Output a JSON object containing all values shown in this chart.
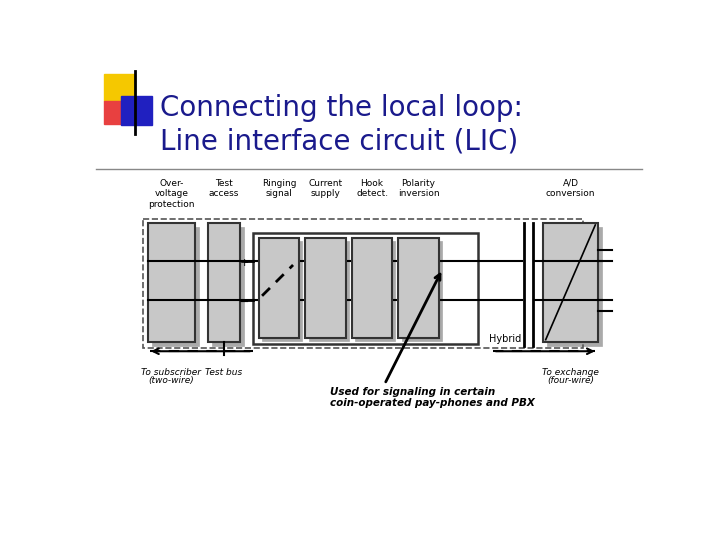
{
  "title_line1": "Connecting the local loop:",
  "title_line2": "Line interface circuit (LIC)",
  "title_color": "#1a1a8c",
  "title_fontsize": 20,
  "bg_color": "#ffffff",
  "box_fill": "#c8c8c8",
  "box_shadow": "#aaaaaa",
  "box_edge": "#333333",
  "annotation_text": "Used for signaling in certain\ncoin-operated pay-phones and PBX",
  "yellow": "#f5c800",
  "red": "#e84040",
  "blue": "#2020c0"
}
